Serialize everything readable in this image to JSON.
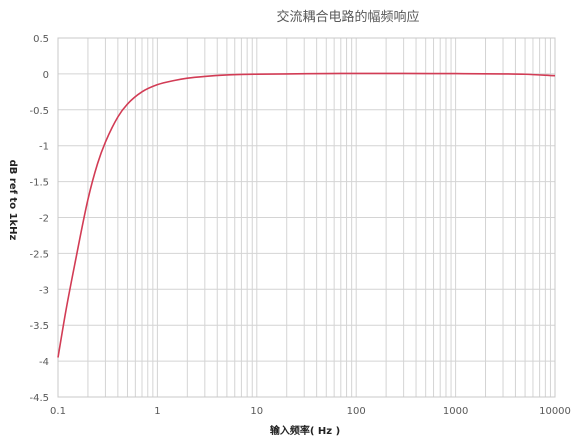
{
  "chart_data": {
    "type": "line",
    "title": "交流耦合电路的幅频响应",
    "xlabel": "输入频率( Hz )",
    "ylabel": "dB ref to 1kHz",
    "x_scale": "log",
    "xlim": [
      0.1,
      10000
    ],
    "ylim": [
      -4.5,
      0.5
    ],
    "grid": true,
    "x_tick_labels": [
      "0.1",
      "1",
      "10",
      "100",
      "1000",
      "10000"
    ],
    "y_tick_labels": [
      "0.5",
      "0",
      "-0.5",
      "-1",
      "-1.5",
      "-2",
      "-2.5",
      "-3",
      "-3.5",
      "-4",
      "-4.5"
    ],
    "series": [
      {
        "color": "#d23c55",
        "x": [
          0.1,
          0.12,
          0.15,
          0.2,
          0.25,
          0.3,
          0.4,
          0.5,
          0.7,
          1,
          1.5,
          2,
          3,
          5,
          7,
          10,
          20,
          50,
          100,
          300,
          1000,
          3000,
          5000,
          10000
        ],
        "y": [
          -3.95,
          -3.3,
          -2.6,
          -1.75,
          -1.25,
          -0.95,
          -0.6,
          -0.42,
          -0.25,
          -0.15,
          -0.09,
          -0.06,
          -0.035,
          -0.015,
          -0.008,
          -0.004,
          0.0,
          0.005,
          0.006,
          0.006,
          0.004,
          0.0,
          -0.005,
          -0.025
        ]
      }
    ]
  }
}
